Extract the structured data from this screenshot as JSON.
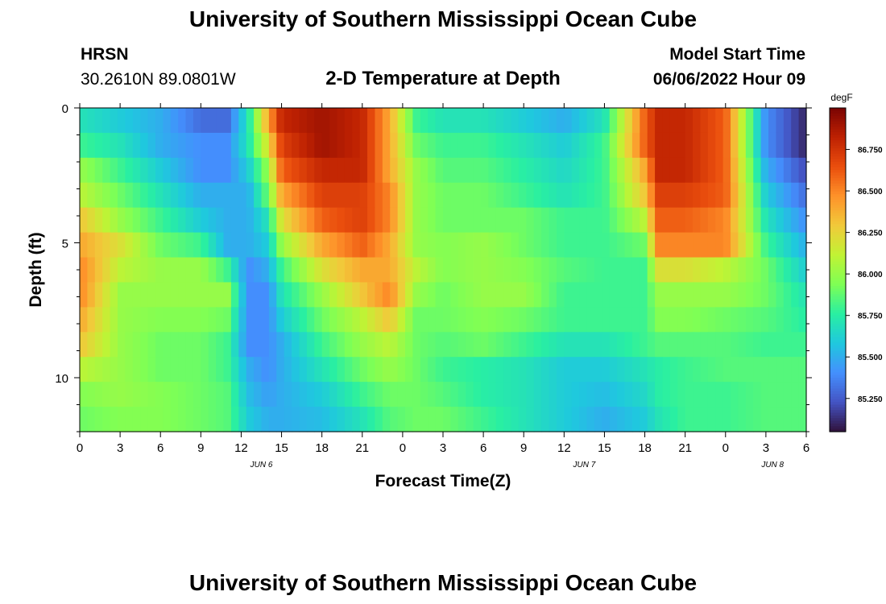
{
  "header": {
    "title": "University of Southern Mississippi Ocean Cube",
    "station_code": "HRSN",
    "station_coords": "30.2610N  89.0801W",
    "chart_title": "2-D Temperature at Depth",
    "model_label": "Model Start Time",
    "model_time": "06/06/2022 Hour 09"
  },
  "footer": {
    "title": "University of Southern Mississippi Ocean Cube"
  },
  "chart_data": {
    "type": "heatmap",
    "title": "2-D Temperature at Depth",
    "xlabel": "Forecast Time(Z)",
    "ylabel": "Depth (ft)",
    "x_tick_labels": [
      "0",
      "3",
      "6",
      "9",
      "12",
      "15",
      "18",
      "21",
      "0",
      "3",
      "6",
      "9",
      "12",
      "15",
      "18",
      "21",
      "0",
      "3",
      "6"
    ],
    "date_labels": [
      "JUN 6",
      "JUN 7",
      "JUN 8"
    ],
    "y_tick_labels": [
      "0",
      "5",
      "10"
    ],
    "ylim": [
      0,
      12
    ],
    "x_range_hours": [
      0,
      54
    ],
    "colorbar": {
      "unit": "degF",
      "tick_labels": [
        "85.250",
        "85.500",
        "85.750",
        "86.000",
        "86.250",
        "86.500",
        "86.750"
      ],
      "range": [
        85.05,
        87.0
      ],
      "colors": [
        "#30123b",
        "#4454c4",
        "#4490fe",
        "#1fc8de",
        "#29efa2",
        "#7eff55",
        "#c1f334",
        "#f1ca3a",
        "#fe922a",
        "#ea4e0d",
        "#be2102",
        "#7a0403"
      ]
    },
    "depth_levels_ft": [
      0,
      1,
      2,
      3,
      4,
      5,
      6,
      7,
      8,
      9,
      10,
      11,
      12
    ],
    "time_keyframes_hours": [
      0,
      3,
      6,
      9,
      11,
      12.5,
      14,
      15,
      18,
      21,
      23,
      25,
      27,
      30,
      33,
      36,
      39,
      42,
      43,
      45,
      48,
      51,
      54
    ],
    "temperature_keyframes_degF": [
      [
        85.7,
        85.6,
        85.5,
        85.3,
        85.3,
        85.7,
        86.4,
        86.8,
        86.9,
        86.8,
        86.4,
        85.8,
        85.7,
        85.7,
        85.6,
        85.5,
        85.7,
        86.6,
        86.8,
        86.8,
        86.6,
        85.4,
        85.1
      ],
      [
        85.8,
        85.7,
        85.5,
        85.4,
        85.4,
        85.7,
        86.2,
        86.7,
        86.9,
        86.8,
        86.4,
        85.9,
        85.8,
        85.8,
        85.7,
        85.6,
        85.8,
        86.6,
        86.8,
        86.8,
        86.6,
        85.4,
        85.1
      ],
      [
        86.0,
        85.8,
        85.6,
        85.4,
        85.4,
        85.6,
        86.0,
        86.6,
        86.8,
        86.8,
        86.4,
        86.0,
        85.85,
        85.85,
        85.75,
        85.65,
        85.8,
        86.4,
        86.8,
        86.8,
        86.6,
        85.5,
        85.2
      ],
      [
        86.1,
        85.9,
        85.7,
        85.5,
        85.5,
        85.5,
        85.9,
        86.4,
        86.7,
        86.7,
        86.5,
        86.0,
        85.9,
        85.9,
        85.8,
        85.7,
        85.8,
        86.3,
        86.7,
        86.7,
        86.6,
        85.6,
        85.3
      ],
      [
        86.3,
        86.0,
        85.8,
        85.6,
        85.5,
        85.5,
        85.7,
        86.2,
        86.6,
        86.7,
        86.5,
        86.0,
        85.9,
        85.9,
        85.9,
        85.8,
        85.8,
        86.1,
        86.6,
        86.6,
        86.5,
        85.7,
        85.4
      ],
      [
        86.4,
        86.2,
        85.9,
        85.8,
        85.5,
        85.5,
        85.6,
        86.0,
        86.4,
        86.6,
        86.4,
        86.0,
        85.95,
        86.0,
        85.9,
        85.8,
        85.8,
        85.9,
        86.5,
        86.5,
        86.5,
        85.8,
        85.5
      ],
      [
        86.5,
        86.1,
        86.0,
        86.0,
        85.8,
        85.4,
        85.5,
        85.8,
        86.2,
        86.4,
        86.4,
        86.1,
        85.95,
        86.0,
        85.95,
        85.85,
        85.8,
        85.8,
        86.2,
        86.2,
        86.1,
        85.9,
        85.6
      ],
      [
        86.5,
        86.0,
        86.0,
        86.0,
        86.0,
        85.4,
        85.4,
        85.7,
        86.0,
        86.3,
        86.5,
        86.0,
        85.9,
        86.0,
        86.0,
        85.8,
        85.8,
        85.8,
        86.0,
        86.0,
        86.0,
        85.9,
        85.7
      ],
      [
        86.4,
        86.0,
        85.95,
        85.95,
        85.9,
        85.4,
        85.4,
        85.6,
        85.9,
        86.1,
        86.3,
        85.9,
        85.9,
        85.95,
        85.9,
        85.8,
        85.8,
        85.8,
        85.95,
        85.95,
        85.9,
        85.85,
        85.75
      ],
      [
        86.3,
        86.0,
        85.9,
        85.9,
        85.8,
        85.4,
        85.4,
        85.5,
        85.8,
        86.0,
        86.1,
        85.9,
        85.85,
        85.9,
        85.8,
        85.7,
        85.7,
        85.8,
        85.85,
        85.85,
        85.85,
        85.8,
        85.8
      ],
      [
        86.1,
        86.0,
        85.9,
        85.9,
        85.8,
        85.5,
        85.4,
        85.5,
        85.7,
        85.9,
        86.0,
        85.9,
        85.8,
        85.75,
        85.7,
        85.6,
        85.6,
        85.7,
        85.75,
        85.8,
        85.85,
        85.85,
        85.85
      ],
      [
        85.95,
        86.0,
        85.95,
        85.9,
        85.85,
        85.55,
        85.45,
        85.5,
        85.6,
        85.8,
        85.9,
        85.9,
        85.85,
        85.75,
        85.7,
        85.6,
        85.55,
        85.65,
        85.75,
        85.8,
        85.8,
        85.85,
        85.85
      ],
      [
        85.9,
        85.95,
        85.95,
        85.9,
        85.85,
        85.6,
        85.5,
        85.5,
        85.55,
        85.7,
        85.85,
        85.9,
        85.9,
        85.8,
        85.7,
        85.6,
        85.5,
        85.6,
        85.7,
        85.8,
        85.8,
        85.85,
        85.85
      ]
    ]
  }
}
